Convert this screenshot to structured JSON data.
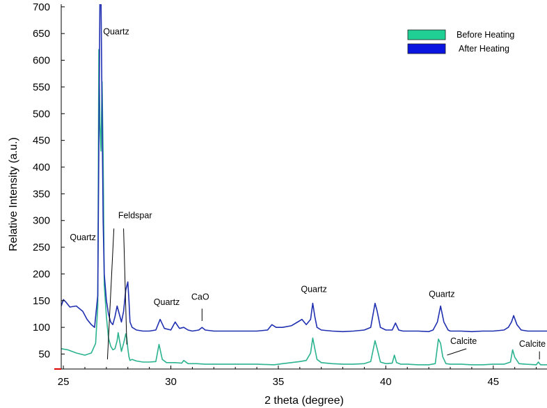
{
  "chart_data": {
    "type": "line",
    "title": "",
    "xlabel": "2 theta (degree)",
    "ylabel": "Relative Intensity (a.u.)",
    "xlim": [
      24.9,
      47.5
    ],
    "ylim": [
      22,
      705
    ],
    "xticks": [
      25,
      30,
      35,
      40,
      45
    ],
    "yticks": [
      50,
      100,
      150,
      200,
      250,
      300,
      350,
      400,
      450,
      500,
      550,
      600,
      650,
      700
    ],
    "legend_position": "top-right",
    "series": [
      {
        "name": "Before Heating",
        "color": "#2bb38f",
        "legend_color": "#1fcf94",
        "x": [
          24.9,
          25.2,
          25.6,
          26.0,
          26.3,
          26.5,
          26.6,
          26.65,
          26.7,
          26.75,
          26.8,
          26.85,
          26.9,
          27.0,
          27.1,
          27.2,
          27.3,
          27.4,
          27.5,
          27.55,
          27.6,
          27.7,
          27.8,
          27.85,
          27.9,
          27.95,
          28.0,
          28.05,
          28.1,
          28.2,
          28.4,
          28.7,
          29.0,
          29.3,
          29.45,
          29.6,
          29.8,
          30.2,
          30.5,
          30.6,
          30.8,
          31.2,
          31.6,
          32.0,
          33.0,
          34.0,
          34.8,
          35.2,
          35.6,
          36.0,
          36.3,
          36.5,
          36.6,
          36.7,
          36.8,
          37.0,
          37.5,
          38.0,
          38.5,
          39.0,
          39.3,
          39.5,
          39.6,
          39.75,
          40.0,
          40.3,
          40.4,
          40.5,
          40.7,
          41.0,
          41.5,
          42.0,
          42.3,
          42.45,
          42.55,
          42.65,
          42.8,
          43.0,
          43.5,
          44.0,
          44.5,
          45.0,
          45.5,
          45.8,
          45.9,
          46.0,
          46.2,
          46.5,
          47.0,
          47.1,
          47.2,
          47.5
        ],
        "y": [
          60,
          58,
          52,
          48,
          52,
          70,
          140,
          620,
          480,
          430,
          560,
          420,
          180,
          120,
          80,
          65,
          58,
          60,
          75,
          90,
          78,
          55,
          70,
          78,
          88,
          80,
          60,
          45,
          38,
          40,
          37,
          35,
          35,
          36,
          68,
          40,
          34,
          34,
          33,
          38,
          32,
          32,
          31,
          31,
          31,
          31,
          30,
          32,
          34,
          36,
          38,
          52,
          80,
          60,
          40,
          34,
          32,
          31,
          31,
          32,
          36,
          75,
          60,
          35,
          32,
          33,
          48,
          34,
          31,
          31,
          30,
          30,
          32,
          78,
          70,
          45,
          32,
          31,
          31,
          30,
          30,
          31,
          31,
          35,
          58,
          44,
          32,
          31,
          30,
          35,
          30,
          30
        ]
      },
      {
        "name": "After Heating",
        "color": "#1f2fb0",
        "legend_color": "#0a16e0",
        "x": [
          24.9,
          25.0,
          25.1,
          25.3,
          25.6,
          25.9,
          26.1,
          26.3,
          26.45,
          26.6,
          26.7,
          26.75,
          26.8,
          26.85,
          26.9,
          27.0,
          27.1,
          27.2,
          27.3,
          27.4,
          27.5,
          27.6,
          27.7,
          27.8,
          27.9,
          28.0,
          28.05,
          28.1,
          28.2,
          28.4,
          28.7,
          29.0,
          29.3,
          29.5,
          29.7,
          30.0,
          30.2,
          30.4,
          30.6,
          30.8,
          31.0,
          31.3,
          31.45,
          31.6,
          32.0,
          33.0,
          34.0,
          34.5,
          34.7,
          34.9,
          35.2,
          35.6,
          35.9,
          36.1,
          36.3,
          36.5,
          36.6,
          36.7,
          36.8,
          37.0,
          37.5,
          38.0,
          38.5,
          39.0,
          39.3,
          39.5,
          39.6,
          39.75,
          40.0,
          40.3,
          40.45,
          40.6,
          40.8,
          41.0,
          41.5,
          42.0,
          42.2,
          42.4,
          42.55,
          42.7,
          42.9,
          43.0,
          43.5,
          44.0,
          44.5,
          45.0,
          45.5,
          45.7,
          45.85,
          45.95,
          46.1,
          46.3,
          46.6,
          47.0,
          47.5
        ],
        "y": [
          140,
          152,
          148,
          138,
          140,
          130,
          115,
          105,
          100,
          160,
          720,
          720,
          500,
          300,
          200,
          150,
          125,
          110,
          105,
          120,
          140,
          125,
          110,
          130,
          170,
          185,
          150,
          110,
          100,
          95,
          93,
          93,
          95,
          115,
          98,
          95,
          110,
          98,
          100,
          95,
          93,
          95,
          100,
          95,
          93,
          93,
          93,
          95,
          105,
          100,
          100,
          103,
          110,
          115,
          105,
          115,
          145,
          120,
          100,
          95,
          93,
          92,
          93,
          95,
          100,
          145,
          130,
          100,
          95,
          95,
          108,
          95,
          93,
          93,
          93,
          92,
          95,
          110,
          140,
          110,
          95,
          93,
          93,
          92,
          93,
          93,
          95,
          100,
          110,
          122,
          105,
          95,
          93,
          93,
          93
        ]
      }
    ],
    "annotations": [
      {
        "text": "Quartz",
        "x": 26.85,
        "y": 648
      },
      {
        "text": "Feldspar",
        "x": 27.55,
        "y": 304
      },
      {
        "text": "Quartz",
        "x": 25.3,
        "y": 263
      },
      {
        "text": "Quartz",
        "x": 29.2,
        "y": 142
      },
      {
        "text": "CaO",
        "x": 30.95,
        "y": 152
      },
      {
        "text": "Quartz",
        "x": 36.05,
        "y": 166
      },
      {
        "text": "Quartz",
        "x": 42.0,
        "y": 157
      },
      {
        "text": "Calcite",
        "x": 43.0,
        "y": 69
      },
      {
        "text": "Calcite",
        "x": 46.2,
        "y": 64
      }
    ]
  }
}
